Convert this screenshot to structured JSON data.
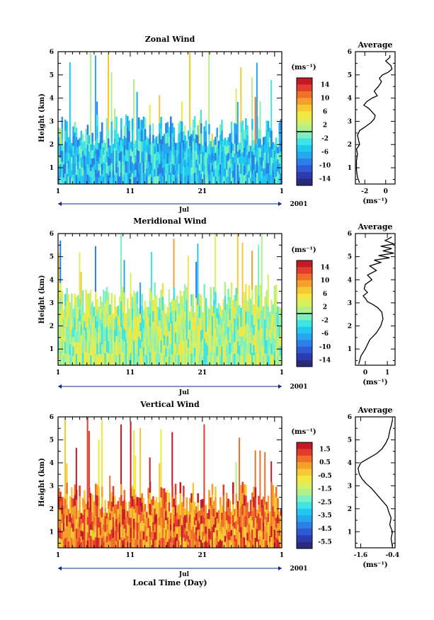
{
  "chart_data": [
    {
      "type": "heatmap",
      "title": "Zonal Wind",
      "ylabel": "Height (km)",
      "ylim": [
        0.3,
        6
      ],
      "yticks": [
        "1",
        "2",
        "3",
        "4",
        "5",
        "6"
      ],
      "xlim": [
        1,
        32
      ],
      "xticks": [
        "1",
        "11",
        "21",
        "1"
      ],
      "month_label": "Jul",
      "year_label": "2001",
      "colorbar": {
        "unit": "(ms⁻¹)",
        "ticks": [
          "14",
          "10",
          "6",
          "2",
          "-2",
          "-6",
          "-10",
          "-14"
        ],
        "range": [
          -16,
          16
        ],
        "zero_line": 0
      },
      "field": {
        "low_level_top_km": 2.6,
        "low_level_mean": -5,
        "upper_level_mean": 1
      },
      "profile": {
        "title": "Average",
        "xlabel": "(ms⁻¹)",
        "xticks": [
          "-2",
          "0"
        ],
        "xlim": [
          -2.9,
          0.9
        ],
        "x": [
          -2.5,
          -2.7,
          -2.8,
          -2.8,
          -2.7,
          -2.8,
          -2.5,
          -2.6,
          -2.7,
          -2.5,
          -2.0,
          -1.7,
          -1.4,
          -1.1,
          -1.0,
          -1.3,
          -1.6,
          -2.1,
          -1.8,
          -1.3,
          -0.8,
          -1.1,
          -0.7,
          -0.4,
          -0.6,
          -0.3,
          0.2,
          0.6,
          0.5,
          0.0,
          0.4,
          0.4
        ],
        "y": [
          0.35,
          0.6,
          0.9,
          1.3,
          1.6,
          1.8,
          2.0,
          2.2,
          2.4,
          2.6,
          2.75,
          2.85,
          2.95,
          3.1,
          3.25,
          3.4,
          3.55,
          3.7,
          3.85,
          4.0,
          4.1,
          4.3,
          4.5,
          4.7,
          4.85,
          5.0,
          5.1,
          5.25,
          5.4,
          5.6,
          5.75,
          5.85
        ]
      }
    },
    {
      "type": "heatmap",
      "title": "Meridional Wind",
      "ylabel": "Height (km)",
      "ylim": [
        0.3,
        6
      ],
      "yticks": [
        "1",
        "2",
        "3",
        "4",
        "5",
        "6"
      ],
      "xlim": [
        1,
        32
      ],
      "xticks": [
        "1",
        "11",
        "21",
        "1"
      ],
      "month_label": "Jul",
      "year_label": "2001",
      "colorbar": {
        "unit": "(ms⁻¹)",
        "ticks": [
          "14",
          "10",
          "6",
          "2",
          "-2",
          "-6",
          "-10",
          "-14"
        ],
        "range": [
          -16,
          16
        ],
        "zero_line": 0
      },
      "field": {
        "low_level_top_km": 3.2,
        "low_level_mean": 1,
        "upper_level_mean": 0
      },
      "profile": {
        "title": "Average",
        "xlabel": "(ms⁻¹)",
        "xticks": [
          "0",
          "1"
        ],
        "xlim": [
          -0.45,
          1.35
        ],
        "x": [
          -0.3,
          -0.2,
          0.0,
          0.2,
          0.5,
          0.7,
          0.8,
          0.75,
          0.55,
          0.3,
          0.1,
          0.0,
          -0.1,
          0.1,
          -0.05,
          0.0,
          0.3,
          0.1,
          0.5,
          0.2,
          0.7,
          0.4,
          1.1,
          0.6,
          1.3,
          0.8,
          1.2,
          0.7,
          1.3,
          0.9,
          1.2
        ],
        "y": [
          0.35,
          0.7,
          1.0,
          1.4,
          1.7,
          2.0,
          2.3,
          2.6,
          2.8,
          2.95,
          3.05,
          3.2,
          3.3,
          3.45,
          3.6,
          3.8,
          4.0,
          4.2,
          4.4,
          4.6,
          4.75,
          4.85,
          4.95,
          5.05,
          5.15,
          5.25,
          5.35,
          5.45,
          5.55,
          5.7,
          5.85
        ]
      }
    },
    {
      "type": "heatmap",
      "title": "Vertical Wind",
      "ylabel": "Height (km)",
      "xlabel": "Local Time (Day)",
      "ylim": [
        0.3,
        6
      ],
      "yticks": [
        "1",
        "2",
        "3",
        "4",
        "5",
        "6"
      ],
      "xlim": [
        1,
        32
      ],
      "xticks": [
        "1",
        "11",
        "21",
        "1"
      ],
      "month_label": "Jul",
      "year_label": "2001",
      "colorbar": {
        "unit": "(ms⁻¹)",
        "ticks": [
          "1.5",
          "0.5",
          "-0.5",
          "-1.5",
          "-2.5",
          "-3.5",
          "-4.5",
          "-5.5"
        ],
        "range": [
          -6,
          2
        ],
        "zero_line": null
      },
      "field": {
        "low_level_top_km": 2.5,
        "low_level_mean": 0.6,
        "upper_level_mean": 0.5
      },
      "profile": {
        "title": "Average",
        "xlabel": "(ms⁻¹)",
        "xticks": [
          "-1.6",
          "-0.4"
        ],
        "xlim": [
          -1.8,
          -0.3
        ],
        "x": [
          -0.4,
          -0.45,
          -0.4,
          -0.5,
          -0.45,
          -0.55,
          -0.6,
          -0.75,
          -0.9,
          -1.05,
          -1.2,
          -1.4,
          -1.55,
          -1.65,
          -1.7,
          -1.6,
          -1.3,
          -1.0,
          -0.8,
          -0.65,
          -0.55,
          -0.5,
          -0.45,
          -0.4
        ],
        "y": [
          0.35,
          0.7,
          1.0,
          1.3,
          1.6,
          1.9,
          2.1,
          2.3,
          2.5,
          2.7,
          2.9,
          3.1,
          3.3,
          3.5,
          3.75,
          4.0,
          4.2,
          4.4,
          4.6,
          4.85,
          5.1,
          5.4,
          5.6,
          5.85
        ]
      }
    }
  ]
}
